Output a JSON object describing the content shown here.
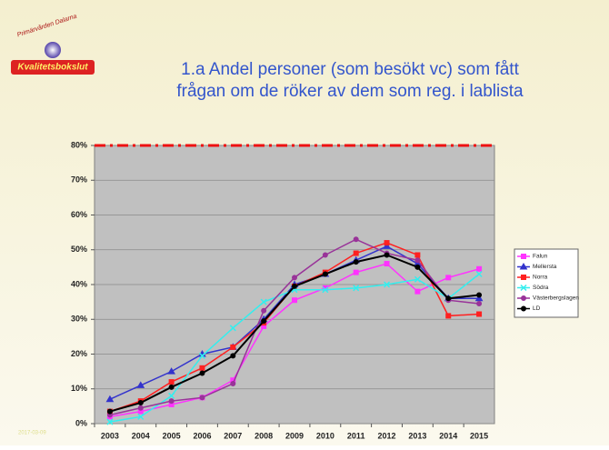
{
  "logo": {
    "top": "Primärvården Dalarna",
    "bottom": "Kvalitetsbokslut"
  },
  "footer_date": "2017-03-09",
  "chart_data": {
    "type": "line",
    "title": [
      "1.a Andel personer (som besökt vc) som fått",
      "frågan om de röker av dem som reg. i lablista"
    ],
    "categories": [
      "2003",
      "2004",
      "2005",
      "2006",
      "2007",
      "2008",
      "2009",
      "2010",
      "2011",
      "2012",
      "2013",
      "2014",
      "2015"
    ],
    "series": [
      {
        "name": "Falun",
        "color": "#ff33ff",
        "marker": "square",
        "values": [
          2,
          3.5,
          5.5,
          7.5,
          12.5,
          28,
          35.5,
          39,
          43.5,
          46,
          38,
          42,
          44.5
        ]
      },
      {
        "name": "Mellersta",
        "color": "#3333cc",
        "marker": "triangle",
        "values": [
          7,
          11,
          15,
          20,
          22,
          30,
          40,
          43,
          47,
          51,
          46,
          36,
          36
        ]
      },
      {
        "name": "Norra",
        "color": "#ff2020",
        "marker": "square",
        "values": [
          3.5,
          6.5,
          12,
          16,
          22,
          29,
          39.5,
          43.5,
          49,
          52,
          48.5,
          31,
          31.5
        ]
      },
      {
        "name": "Södra",
        "color": "#33eeee",
        "marker": "cross",
        "values": [
          0.5,
          2,
          8,
          19.5,
          27.5,
          35,
          38.5,
          38.5,
          39,
          40,
          41.5,
          36,
          43
        ]
      },
      {
        "name": "Västerbergslagen",
        "color": "#993399",
        "marker": "circle",
        "values": [
          2.5,
          4.5,
          6.5,
          7.5,
          11.5,
          32.5,
          42,
          48.5,
          53,
          49,
          47,
          35.5,
          34.5
        ]
      },
      {
        "name": "LD",
        "color": "#000000",
        "marker": "circle",
        "values": [
          3.5,
          6,
          10.5,
          14.5,
          19.5,
          29.5,
          39.5,
          43,
          46.5,
          48.5,
          45,
          36,
          37
        ]
      }
    ],
    "reference_line": {
      "value": 80,
      "color": "#ee1111"
    },
    "ylim": [
      0,
      80
    ],
    "yticks": [
      {
        "value": 0,
        "label": "0%"
      },
      {
        "value": 10,
        "label": "10%"
      },
      {
        "value": 20,
        "label": "20%"
      },
      {
        "value": 30,
        "label": "30%"
      },
      {
        "value": 40,
        "label": "40%"
      },
      {
        "value": 50,
        "label": "50%"
      },
      {
        "value": 60,
        "label": "60%"
      },
      {
        "value": 70,
        "label": "70%"
      },
      {
        "value": 80,
        "label": "80%"
      }
    ],
    "grid": true,
    "legend": "right",
    "plot_color": "#c0c0c0"
  }
}
